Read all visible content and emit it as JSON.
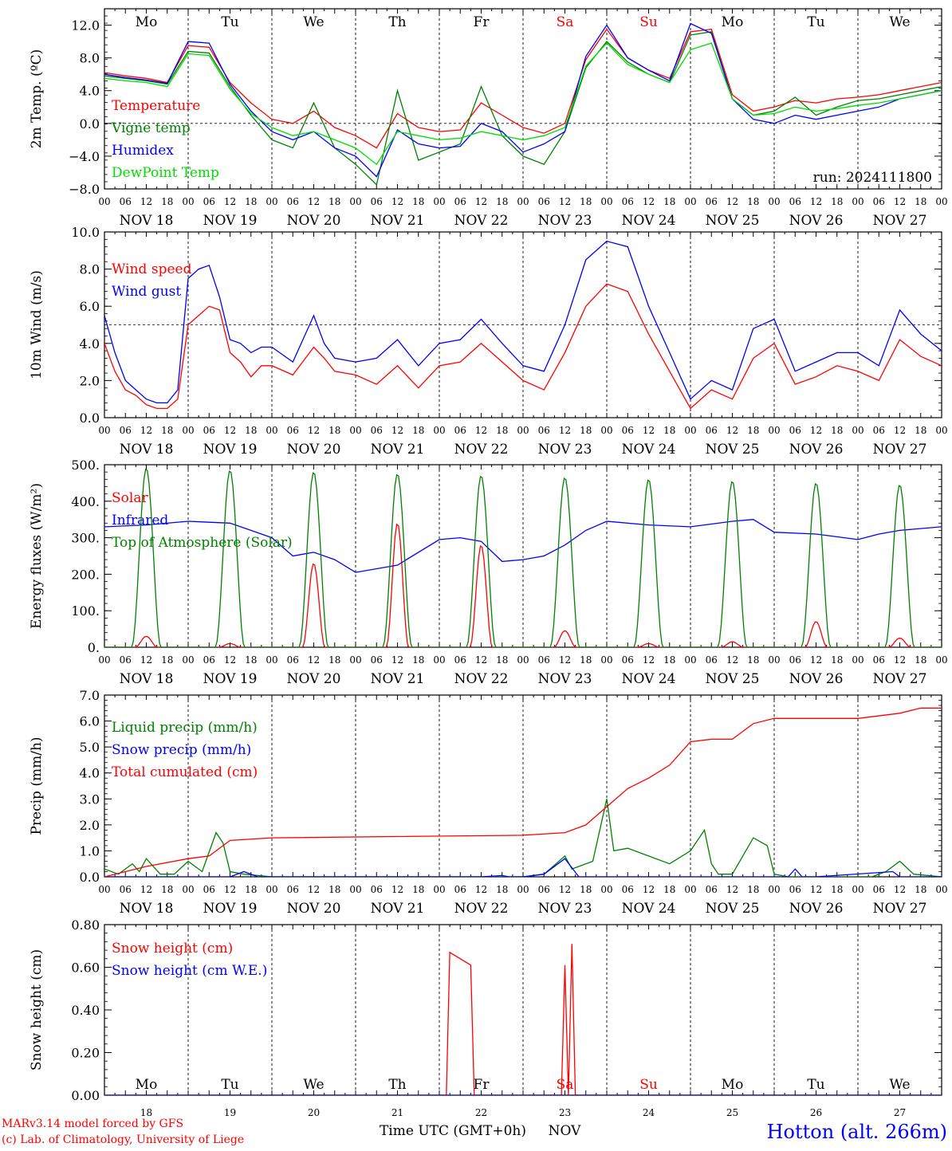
{
  "colors": {
    "red": "#ff0000",
    "darkgreen": "#008000",
    "blue": "#0000ff",
    "lightgreen": "#00dd00",
    "black": "#000000",
    "weekend": "#ff0000"
  },
  "common": {
    "days": [
      "Mo",
      "Tu",
      "We",
      "Th",
      "Fr",
      "Sa",
      "Su",
      "Mo",
      "Tu",
      "We"
    ],
    "weekend_days": [
      5,
      6
    ],
    "dates": [
      "NOV 18",
      "NOV 19",
      "NOV 20",
      "NOV 21",
      "NOV 22",
      "NOV 23",
      "NOV 24",
      "NOV 25",
      "NOV 26",
      "NOV 27"
    ],
    "date_numbers": [
      "18",
      "19",
      "20",
      "21",
      "22",
      "23",
      "24",
      "25",
      "26",
      "27"
    ],
    "hour_ticks": [
      "00",
      "06",
      "12",
      "18"
    ],
    "x_range_hours": [
      0,
      240
    ]
  },
  "footer": {
    "model_line": "MARv3.14 model forced by GFS",
    "credit_line": "(c) Lab. of Climatology, University of Liege",
    "xlabel": "Time UTC (GMT+0h)",
    "month": "NOV",
    "station": "Hotton (alt. 266m)"
  },
  "chart_data": [
    {
      "type": "line",
      "ylabel": "2m Temp. (ºC)",
      "ylim": [
        -8,
        14
      ],
      "yticks": [
        "12.0",
        "8.0",
        "4.0",
        "0.0",
        "−4.0",
        "−8.0"
      ],
      "ytick_values": [
        12,
        8,
        4,
        0,
        -4,
        -8
      ],
      "ref_line": 0,
      "annotation": "run: 2024111800",
      "x_hours": [
        0,
        6,
        12,
        18,
        24,
        30,
        36,
        42,
        48,
        54,
        60,
        66,
        72,
        78,
        84,
        90,
        96,
        102,
        108,
        114,
        120,
        126,
        132,
        138,
        144,
        150,
        156,
        162,
        168,
        174,
        180,
        186,
        192,
        198,
        204,
        210,
        216,
        222,
        228,
        234,
        240
      ],
      "series": [
        {
          "name": "Temperature",
          "color": "red",
          "values": [
            6.2,
            5.8,
            5.5,
            5.0,
            9.5,
            9.3,
            5.0,
            2.5,
            0.5,
            0.0,
            1.5,
            -0.5,
            -1.5,
            -3.0,
            1.2,
            -0.5,
            -1.0,
            -0.8,
            2.5,
            1.0,
            -0.5,
            -1.2,
            0.0,
            7.8,
            11.5,
            8.0,
            6.5,
            5.5,
            11.2,
            11.5,
            3.5,
            1.5,
            2.0,
            2.8,
            2.5,
            3.0,
            3.2,
            3.5,
            4.0,
            4.5,
            5.0
          ]
        },
        {
          "name": "Vigne temp",
          "color": "darkgreen",
          "values": [
            5.8,
            5.5,
            5.2,
            4.8,
            8.8,
            8.6,
            4.5,
            1.0,
            -2.0,
            -3.0,
            2.5,
            -3.0,
            -5.0,
            -7.5,
            4.0,
            -4.5,
            -3.5,
            -2.5,
            4.5,
            -1.5,
            -4.0,
            -5.0,
            -1.0,
            6.8,
            10.0,
            7.5,
            6.0,
            5.0,
            10.8,
            11.2,
            3.0,
            1.0,
            1.5,
            3.2,
            1.0,
            2.0,
            2.8,
            3.0,
            3.5,
            4.0,
            4.5
          ]
        },
        {
          "name": "Humidex",
          "color": "blue",
          "values": [
            6.0,
            5.6,
            5.3,
            4.9,
            10.0,
            9.8,
            4.8,
            1.5,
            -1.0,
            -2.0,
            -1.0,
            -3.0,
            -4.0,
            -6.5,
            -0.8,
            -2.5,
            -3.0,
            -2.8,
            0.0,
            -1.0,
            -3.5,
            -2.5,
            -1.0,
            8.2,
            12.0,
            8.0,
            6.5,
            5.2,
            12.2,
            11.0,
            3.0,
            0.5,
            0.0,
            1.0,
            0.5,
            1.0,
            1.5,
            2.0,
            3.0,
            3.5,
            4.0
          ]
        },
        {
          "name": "DewPoint Temp",
          "color": "lightgreen",
          "values": [
            5.5,
            5.2,
            5.0,
            4.5,
            8.5,
            8.3,
            4.2,
            1.2,
            -0.5,
            -1.5,
            -1.0,
            -2.0,
            -3.0,
            -5.0,
            -1.0,
            -1.5,
            -2.0,
            -1.8,
            -1.0,
            -1.5,
            -2.0,
            -1.5,
            -0.5,
            7.0,
            9.8,
            7.2,
            6.0,
            5.0,
            9.0,
            9.8,
            3.0,
            1.0,
            1.2,
            2.0,
            1.5,
            1.8,
            2.2,
            2.5,
            3.0,
            3.5,
            4.0
          ]
        }
      ]
    },
    {
      "type": "line",
      "ylabel": "10m Wind (m/s)",
      "ylim": [
        0,
        10
      ],
      "yticks": [
        "10.0",
        "8.0",
        "6.0",
        "4.0",
        "2.0",
        "0.0"
      ],
      "ytick_values": [
        10,
        8,
        6,
        4,
        2,
        0
      ],
      "ref_line": 5,
      "x_hours": [
        0,
        3,
        6,
        9,
        12,
        15,
        18,
        21,
        24,
        27,
        30,
        33,
        36,
        39,
        42,
        45,
        48,
        54,
        60,
        63,
        66,
        72,
        78,
        84,
        90,
        96,
        102,
        108,
        114,
        120,
        126,
        132,
        138,
        144,
        150,
        156,
        162,
        168,
        174,
        180,
        186,
        192,
        198,
        204,
        210,
        216,
        222,
        228,
        234,
        240
      ],
      "series": [
        {
          "name": "Wind speed",
          "color": "red",
          "values": [
            4.0,
            2.5,
            1.5,
            1.2,
            0.7,
            0.5,
            0.5,
            1.0,
            5.0,
            5.5,
            6.0,
            5.8,
            3.5,
            3.0,
            2.2,
            2.8,
            2.8,
            2.3,
            3.8,
            3.2,
            2.5,
            2.3,
            1.8,
            2.8,
            1.6,
            2.8,
            3.0,
            4.0,
            3.0,
            2.0,
            1.5,
            3.5,
            6.0,
            7.2,
            6.8,
            4.5,
            2.5,
            0.5,
            1.5,
            1.0,
            3.2,
            4.0,
            1.8,
            2.2,
            2.8,
            2.5,
            2.0,
            4.2,
            3.3,
            2.8
          ]
        },
        {
          "name": "Wind gust",
          "color": "blue",
          "values": [
            5.5,
            3.5,
            2.0,
            1.5,
            1.0,
            0.8,
            0.8,
            1.5,
            7.5,
            8.0,
            8.2,
            6.5,
            4.2,
            4.0,
            3.5,
            3.8,
            3.8,
            3.0,
            5.5,
            4.0,
            3.2,
            3.0,
            3.2,
            4.2,
            2.8,
            4.0,
            4.2,
            5.3,
            4.0,
            2.8,
            2.5,
            5.0,
            8.5,
            9.5,
            9.2,
            6.0,
            3.5,
            1.0,
            2.0,
            1.5,
            4.8,
            5.3,
            2.5,
            3.0,
            3.5,
            3.5,
            2.8,
            5.8,
            4.5,
            3.6
          ]
        }
      ]
    },
    {
      "type": "line",
      "ylabel": "Energy fluxes (W/m²)",
      "ylim": [
        0,
        500
      ],
      "yticks": [
        "500.",
        "400.",
        "300.",
        "200.",
        "100.",
        "0."
      ],
      "ytick_values": [
        500,
        400,
        300,
        200,
        100,
        0
      ],
      "series": [
        {
          "name": "Solar",
          "color": "red",
          "peak_hours": [
            12,
            36,
            60,
            84,
            108,
            132,
            156,
            180,
            204,
            228
          ],
          "peaks": [
            30,
            10,
            230,
            340,
            280,
            45,
            10,
            15,
            70,
            25
          ]
        },
        {
          "name": "Infrared",
          "color": "blue",
          "x_hours": [
            0,
            12,
            24,
            36,
            42,
            48,
            54,
            60,
            66,
            72,
            84,
            96,
            102,
            108,
            114,
            120,
            126,
            132,
            138,
            144,
            156,
            168,
            180,
            186,
            192,
            204,
            216,
            222,
            228,
            240
          ],
          "values": [
            330,
            335,
            345,
            340,
            320,
            300,
            250,
            260,
            240,
            205,
            225,
            295,
            300,
            290,
            235,
            240,
            250,
            280,
            320,
            345,
            335,
            330,
            345,
            350,
            315,
            310,
            295,
            310,
            320,
            330
          ]
        },
        {
          "name": "Top of Atmosphere (Solar)",
          "color": "darkgreen",
          "peak_hours": [
            12,
            36,
            60,
            84,
            108,
            132,
            156,
            180,
            204,
            228
          ],
          "peaks": [
            490,
            485,
            480,
            475,
            470,
            465,
            460,
            455,
            450,
            445
          ]
        }
      ]
    },
    {
      "type": "line",
      "ylabel": "Precip (mm/h)",
      "ylim": [
        0,
        7
      ],
      "yticks": [
        "7.0",
        "6.0",
        "5.0",
        "4.0",
        "3.0",
        "2.0",
        "1.0",
        "0.0"
      ],
      "ytick_values": [
        7,
        6,
        5,
        4,
        3,
        2,
        1,
        0
      ],
      "series": [
        {
          "name": "Liquid precip (mm/h)",
          "color": "darkgreen",
          "x_hours": [
            0,
            4,
            8,
            10,
            12,
            16,
            20,
            24,
            28,
            32,
            34,
            36,
            40,
            48,
            120,
            126,
            132,
            134,
            136,
            140,
            144,
            146,
            150,
            156,
            162,
            168,
            172,
            174,
            176,
            180,
            186,
            190,
            192,
            196,
            220,
            224,
            228,
            232,
            240
          ],
          "values": [
            0.3,
            0.1,
            0.5,
            0.2,
            0.7,
            0.1,
            0.1,
            0.6,
            0.2,
            1.7,
            1.3,
            0.2,
            0.1,
            0,
            0,
            0.1,
            0.8,
            0.3,
            0.4,
            0.6,
            3.0,
            1.0,
            1.1,
            0.8,
            0.5,
            1.0,
            1.8,
            0.5,
            0.1,
            0.1,
            1.5,
            1.2,
            0.1,
            0,
            0,
            0.2,
            0.6,
            0.1,
            0
          ]
        },
        {
          "name": "Snow precip (mm/h)",
          "color": "blue",
          "x_hours": [
            0,
            36,
            40,
            44,
            48,
            108,
            114,
            116,
            120,
            126,
            132,
            136,
            140,
            196,
            198,
            200,
            204,
            226,
            228,
            230,
            240
          ],
          "values": [
            0,
            0,
            0.2,
            0,
            0,
            0,
            0.05,
            0,
            0,
            0.1,
            0.7,
            0,
            0,
            0,
            0.3,
            0,
            0,
            0.2,
            0,
            0,
            0
          ]
        },
        {
          "name": "Total cumulated (cm)",
          "color": "red",
          "x_hours": [
            0,
            12,
            24,
            30,
            36,
            48,
            120,
            132,
            138,
            144,
            150,
            156,
            162,
            168,
            174,
            180,
            186,
            192,
            216,
            228,
            234,
            240
          ],
          "values": [
            0.0,
            0.4,
            0.7,
            0.8,
            1.4,
            1.5,
            1.6,
            1.7,
            2.0,
            2.7,
            3.4,
            3.8,
            4.3,
            5.2,
            5.3,
            5.3,
            5.9,
            6.1,
            6.1,
            6.3,
            6.5,
            6.5
          ]
        }
      ]
    },
    {
      "type": "line",
      "ylabel": "Snow height (cm)",
      "ylim": [
        0,
        0.8
      ],
      "yticks": [
        "0.80",
        "0.60",
        "0.40",
        "0.20",
        "0.00"
      ],
      "ytick_values": [
        0.8,
        0.6,
        0.4,
        0.2,
        0
      ],
      "series": [
        {
          "name": "Snow height (cm)",
          "color": "red",
          "x_hours": [
            0,
            98,
            99,
            105,
            106,
            131,
            132,
            133,
            134,
            135,
            136,
            240
          ],
          "values": [
            0,
            0,
            0.67,
            0.61,
            0,
            0,
            0.61,
            0,
            0.71,
            0,
            0,
            0
          ]
        },
        {
          "name": "Snow height (cm W.E.)",
          "color": "blue",
          "x_hours": [
            0,
            240
          ],
          "values": [
            0,
            0
          ]
        }
      ]
    }
  ]
}
